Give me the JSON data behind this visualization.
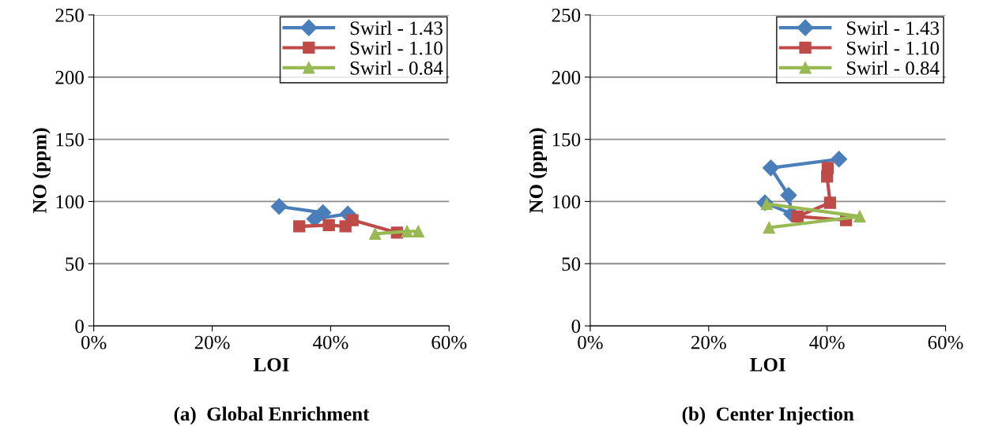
{
  "chart_data": [
    {
      "type": "line",
      "xlabel": "LOI",
      "ylabel": "NO (ppm)",
      "annotations": [
        "(a)  Global Enrichment"
      ],
      "xlim": [
        0,
        0.6
      ],
      "xticks": [
        {
          "value": 0,
          "label": "0%"
        },
        {
          "value": 0.2,
          "label": "20%"
        },
        {
          "value": 0.4,
          "label": "40%"
        },
        {
          "value": 0.6,
          "label": "60%"
        }
      ],
      "ylim": [
        0,
        250
      ],
      "yticks": [
        0,
        50,
        100,
        150,
        200,
        250
      ],
      "grid": "y",
      "legend": "top right",
      "series": [
        {
          "name": "Swirl - 1.43",
          "color": "#4a7ebb",
          "marker": "diamond",
          "x": [
            0.313,
            0.387,
            0.373,
            0.429
          ],
          "values": [
            96,
            91,
            86,
            90
          ]
        },
        {
          "name": "Swirl - 1.10",
          "color": "#be4b48",
          "marker": "square",
          "x": [
            0.347,
            0.397,
            0.425,
            0.437,
            0.512
          ],
          "values": [
            80,
            81,
            80,
            85,
            75
          ]
        },
        {
          "name": "Swirl - 0.84",
          "color": "#98b954",
          "marker": "triangle",
          "x": [
            0.475,
            0.529,
            0.548
          ],
          "values": [
            74,
            76,
            76
          ]
        }
      ]
    },
    {
      "type": "line",
      "xlabel": "LOI",
      "ylabel": "NO (ppm)",
      "annotations": [
        "(b)  Center Injection"
      ],
      "xlim": [
        0,
        0.6
      ],
      "xticks": [
        {
          "value": 0,
          "label": "0%"
        },
        {
          "value": 0.2,
          "label": "20%"
        },
        {
          "value": 0.4,
          "label": "40%"
        },
        {
          "value": 0.6,
          "label": "60%"
        }
      ],
      "ylim": [
        0,
        250
      ],
      "yticks": [
        0,
        50,
        100,
        150,
        200,
        250
      ],
      "grid": "y",
      "legend": "top right",
      "series": [
        {
          "name": "Swirl - 1.43",
          "color": "#4a7ebb",
          "marker": "diamond",
          "x": [
            0.295,
            0.34,
            0.335,
            0.305,
            0.42
          ],
          "values": [
            99,
            90,
            105,
            127,
            134
          ]
        },
        {
          "name": "Swirl - 1.10",
          "color": "#be4b48",
          "marker": "square",
          "x": [
            0.401,
            0.4,
            0.405,
            0.35,
            0.432
          ],
          "values": [
            127,
            120,
            99,
            88,
            85
          ]
        },
        {
          "name": "Swirl - 0.84",
          "color": "#98b954",
          "marker": "triangle",
          "x": [
            0.298,
            0.455,
            0.302
          ],
          "values": [
            98,
            88,
            79
          ]
        }
      ]
    }
  ]
}
